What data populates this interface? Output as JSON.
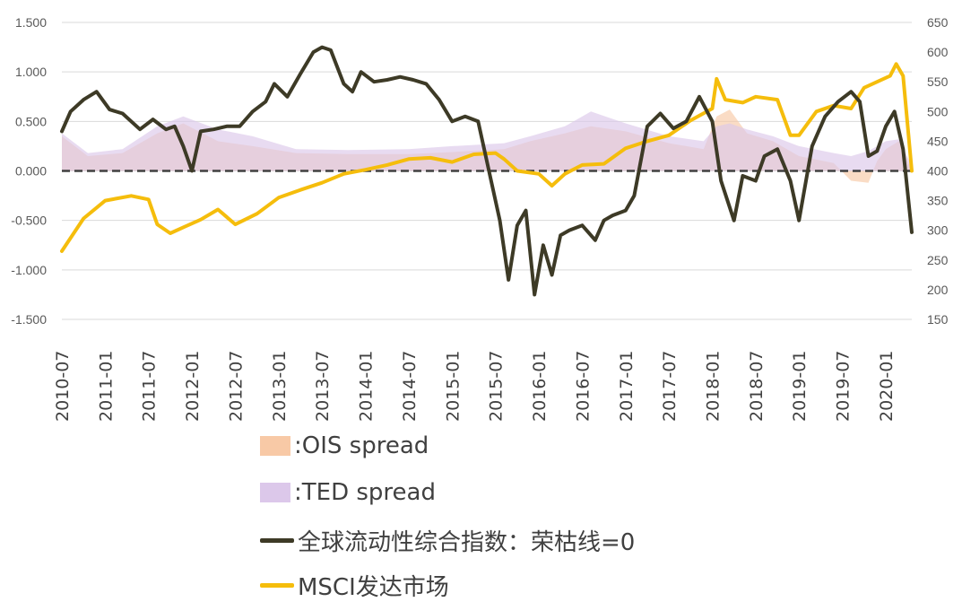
{
  "chart_data": {
    "type": "line",
    "left_axis": {
      "ticks": [
        "1.500",
        "1.000",
        "0.500",
        "0.000",
        "-0.500",
        "-1.000",
        "-1.500"
      ],
      "range": [
        -1.5,
        1.5
      ]
    },
    "right_axis": {
      "ticks": [
        "650",
        "600",
        "550",
        "500",
        "450",
        "400",
        "350",
        "300",
        "250",
        "200",
        "150"
      ],
      "range": [
        150,
        650
      ]
    },
    "x_ticks": [
      "2010-07",
      "2011-01",
      "2011-07",
      "2012-01",
      "2012-07",
      "2013-01",
      "2013-07",
      "2014-01",
      "2014-07",
      "2015-01",
      "2015-07",
      "2016-01",
      "2016-07",
      "2017-01",
      "2017-07",
      "2018-01",
      "2018-07",
      "2019-01",
      "2019-07",
      "2020-01"
    ],
    "reference_line": {
      "value": 0,
      "style": "dashed"
    },
    "series": [
      {
        "name": ":OIS spread",
        "kind": "area",
        "axis": "left",
        "color": "#f8c9a6",
        "x": [
          2010.5,
          2010.8,
          2011.2,
          2011.6,
          2011.9,
          2012.3,
          2012.7,
          2013.2,
          2013.8,
          2014.5,
          2015.0,
          2015.6,
          2015.9,
          2016.3,
          2016.6,
          2017.0,
          2017.5,
          2017.9,
          2018.05,
          2018.2,
          2018.4,
          2018.7,
          2019.0,
          2019.4,
          2019.6,
          2019.8,
          2019.9,
          2020.0,
          2020.15,
          2020.3
        ],
        "values": [
          0.35,
          0.15,
          0.18,
          0.38,
          0.48,
          0.3,
          0.25,
          0.18,
          0.17,
          0.17,
          0.19,
          0.22,
          0.3,
          0.38,
          0.45,
          0.4,
          0.28,
          0.22,
          0.55,
          0.62,
          0.38,
          0.3,
          0.15,
          0.08,
          -0.1,
          -0.12,
          0.1,
          0.22,
          0.3,
          0.0
        ]
      },
      {
        "name": ":TED spread",
        "kind": "area",
        "axis": "left",
        "color": "#dcc8ea",
        "x": [
          2010.5,
          2010.8,
          2011.2,
          2011.6,
          2011.9,
          2012.3,
          2012.7,
          2013.2,
          2013.8,
          2014.5,
          2015.0,
          2015.6,
          2015.9,
          2016.3,
          2016.6,
          2017.0,
          2017.5,
          2017.9,
          2018.05,
          2018.2,
          2018.4,
          2018.7,
          2019.0,
          2019.4,
          2019.6,
          2019.8,
          2019.9,
          2020.0,
          2020.15,
          2020.3
        ],
        "values": [
          0.38,
          0.18,
          0.22,
          0.45,
          0.55,
          0.42,
          0.35,
          0.22,
          0.21,
          0.22,
          0.25,
          0.28,
          0.35,
          0.45,
          0.6,
          0.48,
          0.35,
          0.3,
          0.45,
          0.48,
          0.42,
          0.35,
          0.25,
          0.18,
          0.15,
          0.2,
          0.25,
          0.3,
          0.32,
          0.05
        ]
      },
      {
        "name": "全球流动性综合指数：荣枯线=0",
        "kind": "line",
        "axis": "left",
        "color": "#3d3a26",
        "x": [
          2010.5,
          2010.6,
          2010.75,
          2010.9,
          2011.05,
          2011.2,
          2011.4,
          2011.55,
          2011.7,
          2011.8,
          2011.9,
          2012.0,
          2012.1,
          2012.25,
          2012.4,
          2012.55,
          2012.7,
          2012.85,
          2012.95,
          2013.1,
          2013.25,
          2013.4,
          2013.5,
          2013.6,
          2013.75,
          2013.85,
          2013.95,
          2014.1,
          2014.25,
          2014.4,
          2014.55,
          2014.7,
          2014.85,
          2015.0,
          2015.15,
          2015.3,
          2015.45,
          2015.55,
          2015.65,
          2015.75,
          2015.85,
          2015.95,
          2016.05,
          2016.15,
          2016.25,
          2016.35,
          2016.5,
          2016.65,
          2016.75,
          2016.85,
          2017.0,
          2017.1,
          2017.25,
          2017.4,
          2017.55,
          2017.7,
          2017.85,
          2018.0,
          2018.1,
          2018.25,
          2018.35,
          2018.5,
          2018.6,
          2018.75,
          2018.9,
          2019.0,
          2019.15,
          2019.3,
          2019.45,
          2019.6,
          2019.7,
          2019.8,
          2019.9,
          2020.0,
          2020.1,
          2020.2,
          2020.3
        ],
        "values": [
          0.4,
          0.6,
          0.72,
          0.8,
          0.62,
          0.58,
          0.42,
          0.52,
          0.42,
          0.45,
          0.25,
          0.0,
          0.4,
          0.42,
          0.45,
          0.45,
          0.6,
          0.7,
          0.88,
          0.75,
          0.98,
          1.2,
          1.25,
          1.22,
          0.88,
          0.8,
          1.0,
          0.9,
          0.92,
          0.95,
          0.92,
          0.88,
          0.72,
          0.5,
          0.55,
          0.5,
          -0.1,
          -0.5,
          -1.1,
          -0.55,
          -0.4,
          -1.25,
          -0.75,
          -1.05,
          -0.65,
          -0.6,
          -0.55,
          -0.7,
          -0.5,
          -0.45,
          -0.4,
          -0.25,
          0.45,
          0.58,
          0.43,
          0.5,
          0.75,
          0.5,
          -0.1,
          -0.5,
          -0.05,
          -0.1,
          0.15,
          0.22,
          -0.1,
          -0.5,
          0.25,
          0.55,
          0.7,
          0.8,
          0.7,
          0.15,
          0.2,
          0.45,
          0.6,
          0.22,
          -0.62
        ]
      },
      {
        "name": "MSCI发达市场",
        "kind": "line",
        "axis": "right",
        "color": "#f5bd0c",
        "x": [
          2010.5,
          2010.75,
          2011.0,
          2011.3,
          2011.5,
          2011.6,
          2011.75,
          2011.9,
          2012.1,
          2012.3,
          2012.5,
          2012.75,
          2013.0,
          2013.25,
          2013.5,
          2013.75,
          2014.0,
          2014.25,
          2014.5,
          2014.75,
          2015.0,
          2015.25,
          2015.5,
          2015.6,
          2015.75,
          2016.0,
          2016.15,
          2016.3,
          2016.5,
          2016.75,
          2017.0,
          2017.25,
          2017.5,
          2017.75,
          2018.0,
          2018.05,
          2018.15,
          2018.35,
          2018.5,
          2018.75,
          2018.9,
          2019.0,
          2019.2,
          2019.4,
          2019.6,
          2019.75,
          2019.9,
          2020.05,
          2020.12,
          2020.2,
          2020.3
        ],
        "values": [
          265,
          320,
          350,
          358,
          352,
          310,
          295,
          305,
          318,
          335,
          310,
          328,
          355,
          368,
          380,
          395,
          402,
          410,
          420,
          422,
          415,
          428,
          430,
          420,
          400,
          395,
          375,
          395,
          410,
          412,
          438,
          450,
          460,
          485,
          505,
          555,
          520,
          515,
          525,
          520,
          460,
          460,
          500,
          510,
          505,
          540,
          550,
          560,
          580,
          560,
          400
        ]
      }
    ]
  }
}
